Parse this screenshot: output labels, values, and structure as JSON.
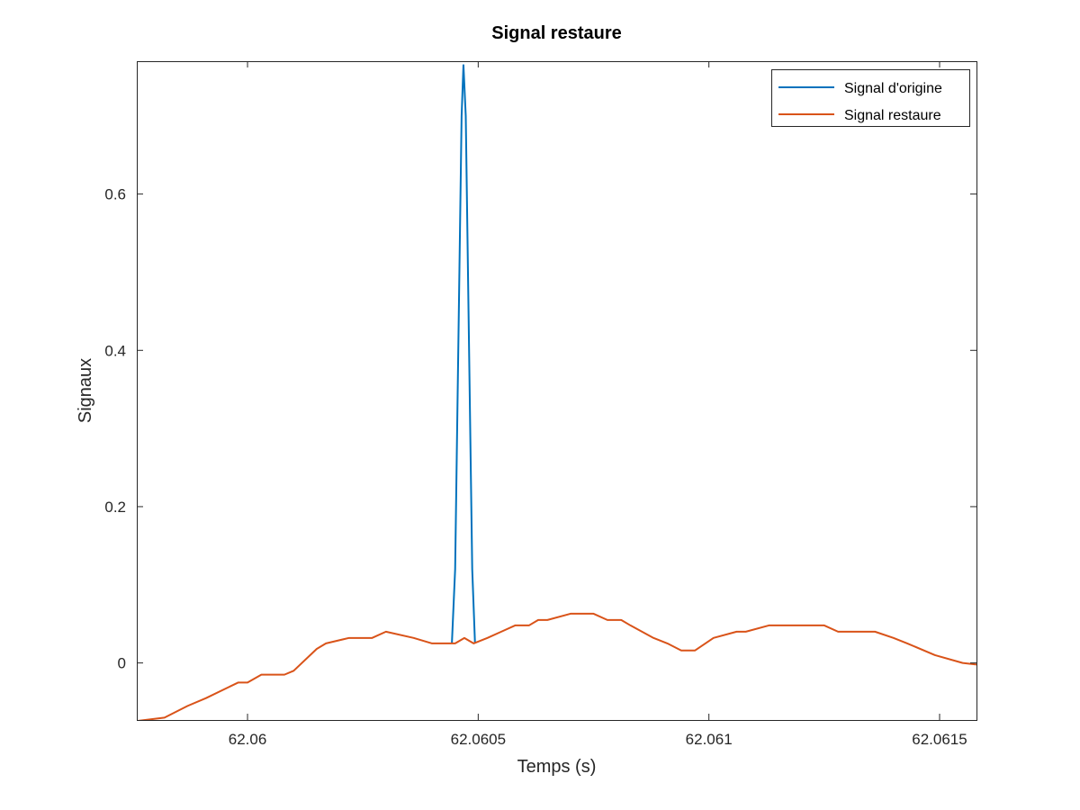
{
  "chart_data": {
    "type": "line",
    "title": "Signal restaure",
    "xlabel": "Temps (s)",
    "ylabel": "Signaux",
    "xlim": [
      62.05976,
      62.06158
    ],
    "ylim": [
      -0.073,
      0.77
    ],
    "xticks": [
      62.06,
      62.0605,
      62.061,
      62.0615
    ],
    "xtick_labels": [
      "62.06",
      "62.0605",
      "62.061",
      "62.0615"
    ],
    "yticks": [
      0,
      0.2,
      0.4,
      0.6
    ],
    "ytick_labels": [
      "0",
      "0.2",
      "0.4",
      "0.6"
    ],
    "grid": false,
    "legend_position": "top-right",
    "series": [
      {
        "name": "Signal d'origine",
        "color": "#0072BD",
        "x": [
          62.060443,
          62.06045,
          62.060458,
          62.060464,
          62.060468,
          62.060473,
          62.060479,
          62.060487,
          62.060493
        ],
        "y": [
          0.026,
          0.12,
          0.45,
          0.7,
          0.765,
          0.7,
          0.45,
          0.12,
          0.026
        ]
      },
      {
        "name": "Signal restaure",
        "color": "#D95319",
        "x": [
          62.05975,
          62.05982,
          62.05987,
          62.05991,
          62.05998,
          62.06,
          62.06003,
          62.06008,
          62.0601,
          62.06015,
          62.06017,
          62.06022,
          62.06027,
          62.0603,
          62.06036,
          62.0604,
          62.06045,
          62.06047,
          62.06049,
          62.06052,
          62.06055,
          62.06058,
          62.06061,
          62.06063,
          62.06065,
          62.0607,
          62.06075,
          62.06078,
          62.06081,
          62.06083,
          62.06088,
          62.06091,
          62.06094,
          62.06097,
          62.06101,
          62.06106,
          62.06108,
          62.06113,
          62.06115,
          62.0612,
          62.06125,
          62.06128,
          62.0613,
          62.06136,
          62.0614,
          62.06143,
          62.06149,
          62.06155,
          62.06158
        ],
        "y": [
          -0.075,
          -0.07,
          -0.055,
          -0.045,
          -0.025,
          -0.025,
          -0.015,
          -0.015,
          -0.01,
          0.018,
          0.025,
          0.032,
          0.032,
          0.04,
          0.032,
          0.025,
          0.025,
          0.032,
          0.025,
          0.032,
          0.04,
          0.048,
          0.048,
          0.055,
          0.055,
          0.063,
          0.063,
          0.055,
          0.055,
          0.048,
          0.032,
          0.025,
          0.016,
          0.016,
          0.032,
          0.04,
          0.04,
          0.048,
          0.048,
          0.048,
          0.048,
          0.04,
          0.04,
          0.04,
          0.032,
          0.025,
          0.01,
          0.0,
          -0.002
        ]
      }
    ]
  }
}
